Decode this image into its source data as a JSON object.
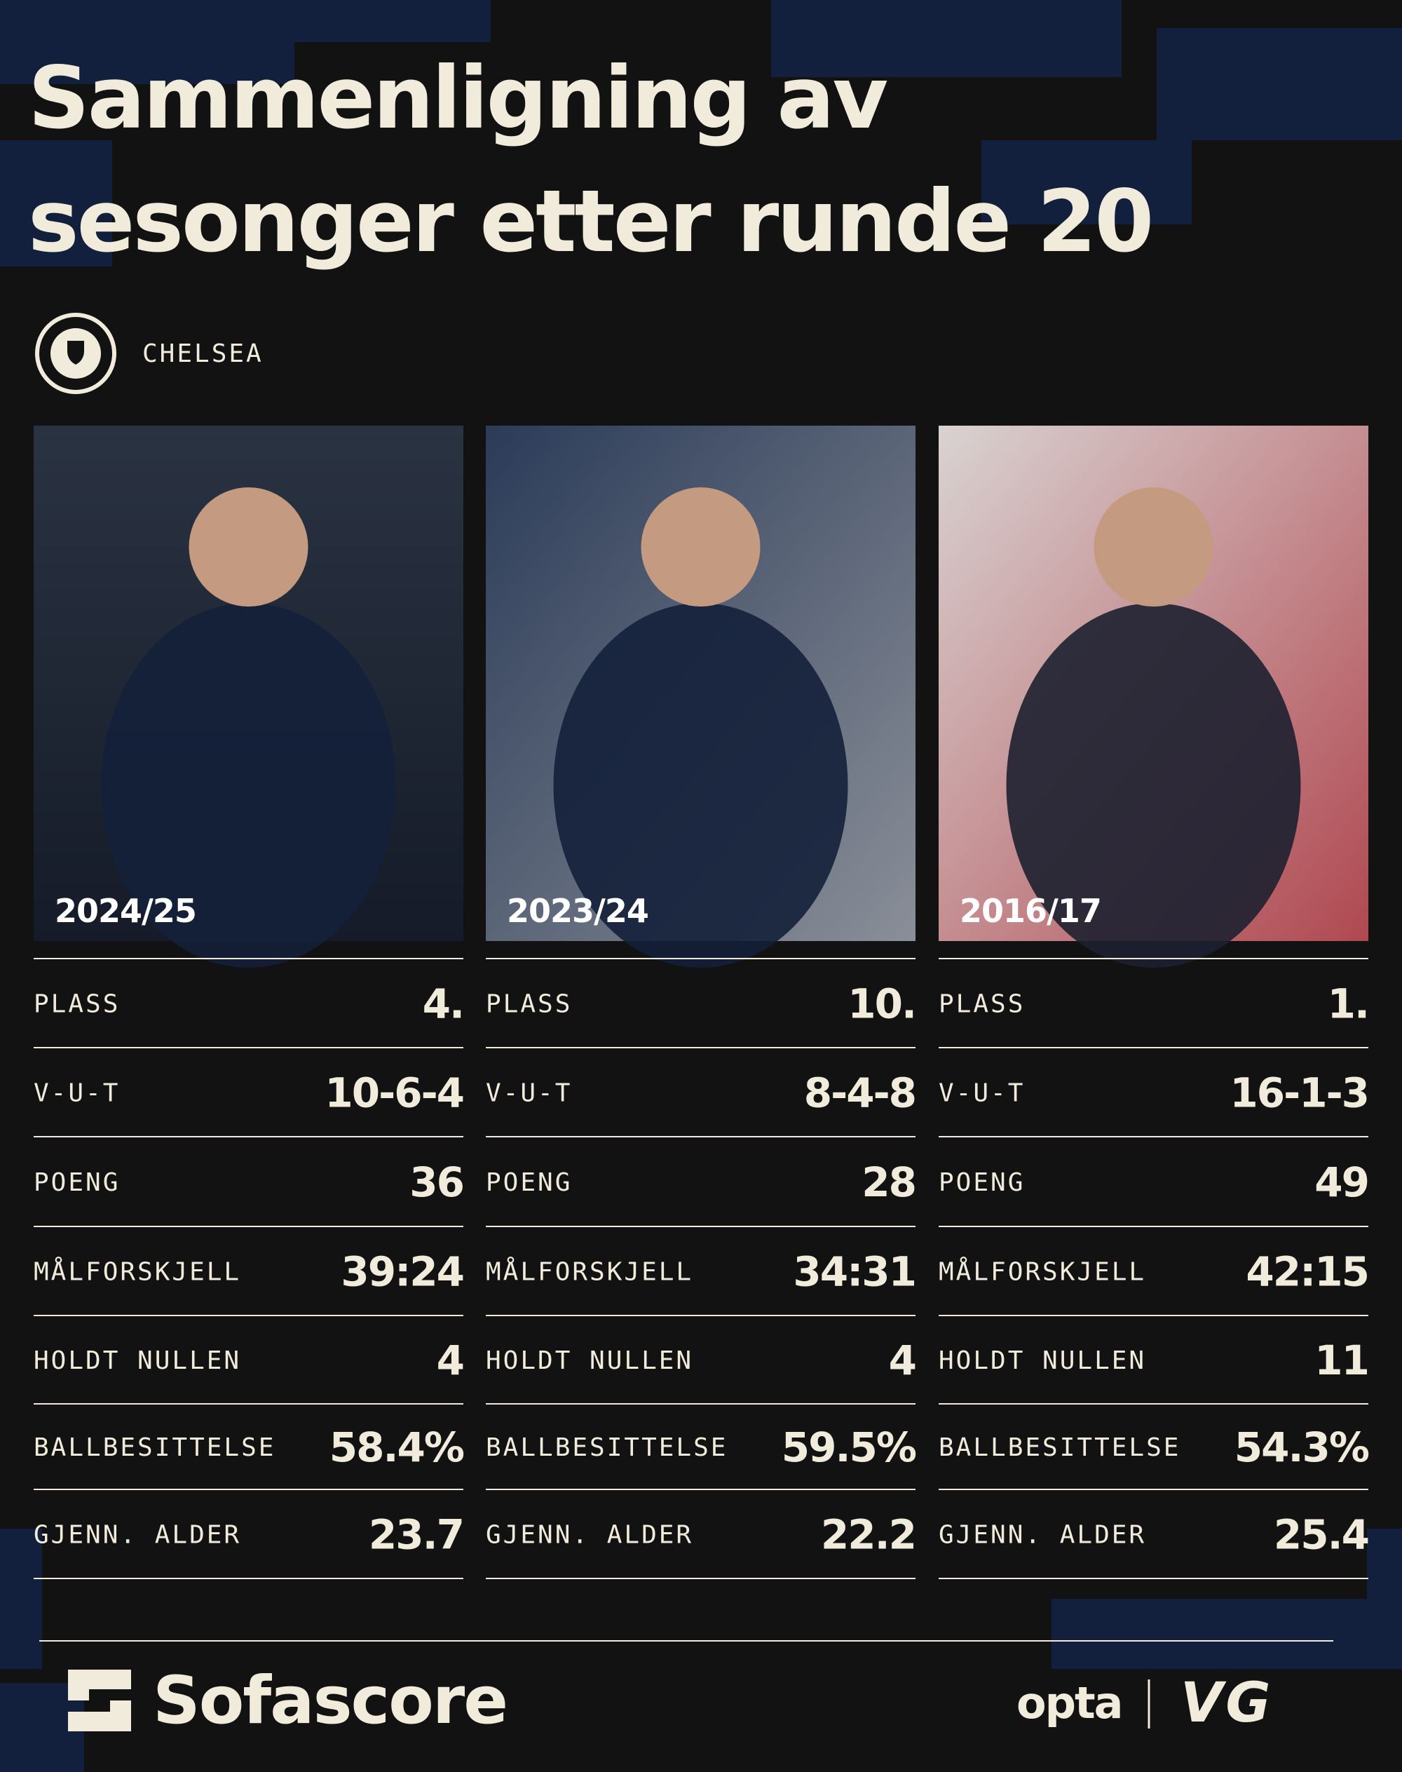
{
  "title_lines": [
    "Sammenligning av",
    "sesonger etter runde 20"
  ],
  "club": "CHELSEA",
  "columns": [
    {
      "season": "2024/25",
      "stats": [
        {
          "label": "PLASS",
          "value": "4."
        },
        {
          "label": "V-U-T",
          "value": "10-6-4"
        },
        {
          "label": "POENG",
          "value": "36"
        },
        {
          "label": "MÅLFORSKJELL",
          "value": "39:24"
        },
        {
          "label": "HOLDT NULLEN",
          "value": "4"
        },
        {
          "label": "BALLBESITTELSE",
          "value": "58.4%"
        },
        {
          "label": "GJENN. ALDER",
          "value": "23.7"
        }
      ]
    },
    {
      "season": "2023/24",
      "stats": [
        {
          "label": "PLASS",
          "value": "10."
        },
        {
          "label": "V-U-T",
          "value": "8-4-8"
        },
        {
          "label": "POENG",
          "value": "28"
        },
        {
          "label": "MÅLFORSKJELL",
          "value": "34:31"
        },
        {
          "label": "HOLDT NULLEN",
          "value": "4"
        },
        {
          "label": "BALLBESITTELSE",
          "value": "59.5%"
        },
        {
          "label": "GJENN. ALDER",
          "value": "22.2"
        }
      ]
    },
    {
      "season": "2016/17",
      "stats": [
        {
          "label": "PLASS",
          "value": "1."
        },
        {
          "label": "V-U-T",
          "value": "16-1-3"
        },
        {
          "label": "POENG",
          "value": "49"
        },
        {
          "label": "MÅLFORSKJELL",
          "value": "42:15"
        },
        {
          "label": "HOLDT NULLEN",
          "value": "11"
        },
        {
          "label": "BALLBESITTELSE",
          "value": "54.3%"
        },
        {
          "label": "GJENN. ALDER",
          "value": "25.4"
        }
      ]
    }
  ],
  "footer": {
    "brand": "Sofascore",
    "partner": "opta",
    "publisher": "VG"
  }
}
